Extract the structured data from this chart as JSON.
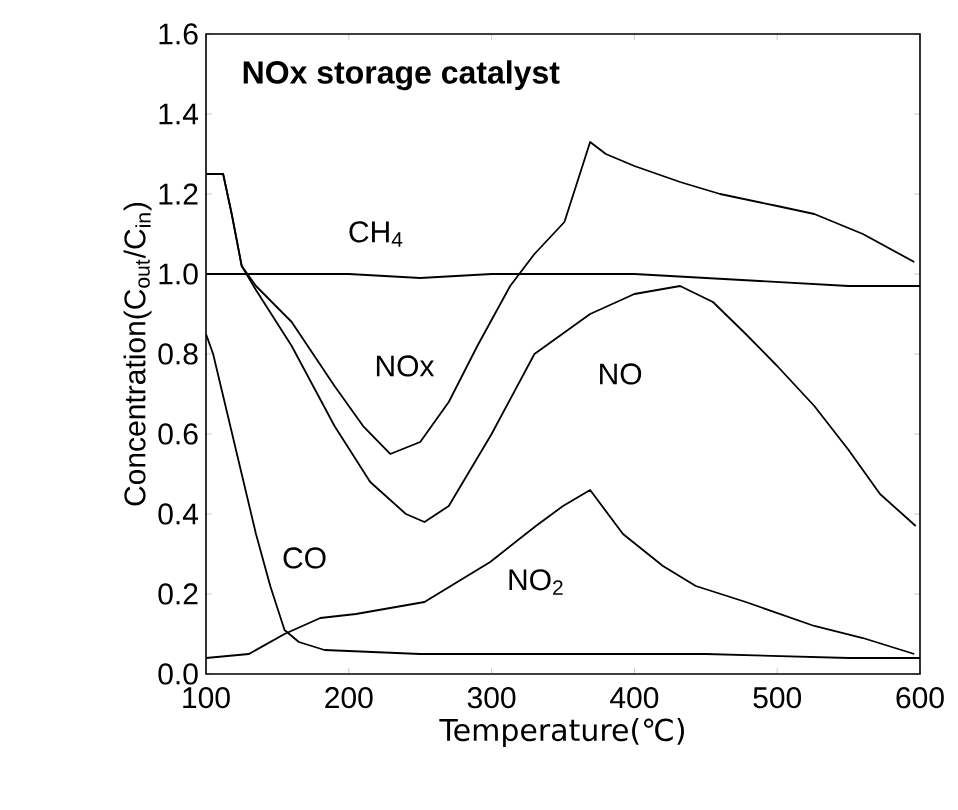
{
  "chart_data": {
    "type": "line",
    "title": "NOx storage catalyst",
    "xlabel": "Temperature(℃)",
    "ylabel": "Concentration(C$_{out}$/C$_{in}$)",
    "xlim": [
      100,
      600
    ],
    "ylim": [
      0,
      1.6
    ],
    "xticks": [
      100,
      200,
      300,
      400,
      500,
      600
    ],
    "yticks": [
      {
        "value": 0,
        "label": "0.0"
      },
      {
        "value": 0.2,
        "label": "0.2"
      },
      {
        "value": 0.4,
        "label": "0.4"
      },
      {
        "value": 0.6,
        "label": "0.6"
      },
      {
        "value": 0.8,
        "label": "0.8"
      },
      {
        "value": 1.0,
        "label": "1.0"
      },
      {
        "value": 1.2,
        "label": "1.2"
      },
      {
        "value": 1.4,
        "label": "1.4"
      },
      {
        "value": 1.6,
        "label": "1.6"
      }
    ],
    "grid": false,
    "marker": "none",
    "line_style": "solid",
    "series": [
      {
        "name": "CH$_{4}$",
        "color": "#000000",
        "x": [
          100,
          150,
          200,
          250,
          300,
          350,
          400,
          450,
          500,
          550,
          600
        ],
        "values": [
          1.0,
          1.0,
          1.0,
          0.99,
          1.0,
          1.0,
          1.0,
          0.99,
          0.98,
          0.97,
          0.97
        ]
      },
      {
        "name": "NOx",
        "color": "#000000",
        "x": [
          100,
          112,
          118,
          125,
          135,
          160,
          190,
          210,
          229,
          250,
          270,
          290,
          313,
          330,
          351,
          369,
          380,
          400,
          432,
          460,
          500,
          526,
          560,
          596
        ],
        "values": [
          1.25,
          1.25,
          1.15,
          1.02,
          0.97,
          0.88,
          0.72,
          0.62,
          0.55,
          0.58,
          0.68,
          0.82,
          0.97,
          1.05,
          1.13,
          1.33,
          1.3,
          1.27,
          1.23,
          1.2,
          1.17,
          1.15,
          1.1,
          1.03
        ]
      },
      {
        "name": "NO",
        "color": "#000000",
        "x": [
          100,
          112,
          118,
          125,
          135,
          160,
          190,
          215,
          240,
          253,
          270,
          300,
          330,
          369,
          400,
          432,
          455,
          478,
          500,
          526,
          550,
          572,
          597
        ],
        "values": [
          1.25,
          1.25,
          1.15,
          1.02,
          0.96,
          0.82,
          0.62,
          0.48,
          0.4,
          0.38,
          0.42,
          0.6,
          0.8,
          0.9,
          0.95,
          0.97,
          0.93,
          0.85,
          0.77,
          0.67,
          0.56,
          0.45,
          0.37
        ]
      },
      {
        "name": "CO",
        "color": "#000000",
        "x": [
          100,
          105,
          113,
          125,
          135,
          145,
          155,
          165,
          183,
          250,
          350,
          450,
          550,
          600
        ],
        "values": [
          0.85,
          0.8,
          0.68,
          0.5,
          0.35,
          0.22,
          0.11,
          0.08,
          0.06,
          0.05,
          0.05,
          0.05,
          0.04,
          0.04
        ]
      },
      {
        "name": "NO$_{2}$",
        "color": "#000000",
        "x": [
          100,
          130,
          155,
          180,
          205,
          253,
          299,
          331,
          350,
          369,
          392,
          420,
          443,
          478,
          526,
          560,
          596
        ],
        "values": [
          0.04,
          0.05,
          0.1,
          0.14,
          0.15,
          0.18,
          0.28,
          0.37,
          0.42,
          0.46,
          0.35,
          0.27,
          0.22,
          0.18,
          0.12,
          0.09,
          0.05
        ]
      }
    ]
  }
}
